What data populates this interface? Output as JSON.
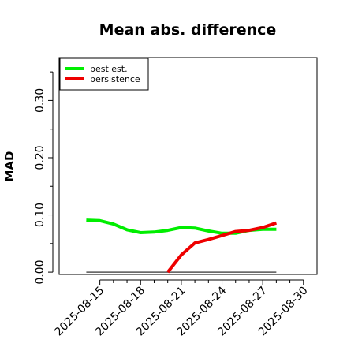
{
  "chart_data": {
    "type": "line",
    "title": "Mean abs. difference",
    "ylabel": "MAD",
    "xlabel": "",
    "ylim": [
      -0.004,
      0.375
    ],
    "xlim": [
      "2025-08-12",
      "2025-08-31"
    ],
    "yticks": [
      0.0,
      0.1,
      0.2,
      0.3
    ],
    "yticklabels": [
      "0.00",
      "0.10",
      "0.20",
      "0.30"
    ],
    "yminorticks": [
      0.05,
      0.15,
      0.25,
      0.35
    ],
    "xticks": [
      "2025-08-15",
      "2025-08-18",
      "2025-08-21",
      "2025-08-24",
      "2025-08-27",
      "2025-08-30"
    ],
    "xminorticks": [
      "2025-08-16",
      "2025-08-17",
      "2025-08-19",
      "2025-08-20",
      "2025-08-22",
      "2025-08-23",
      "2025-08-25",
      "2025-08-26",
      "2025-08-28",
      "2025-08-29"
    ],
    "grid": false,
    "legend_position": "top-left",
    "reference_line": {
      "y": 0.0,
      "x_from": "2025-08-14",
      "x_to": "2025-08-28",
      "color": "#555555"
    },
    "series": [
      {
        "name": "best est.",
        "color": "#00ee00",
        "x": [
          "2025-08-14",
          "2025-08-15",
          "2025-08-16",
          "2025-08-17",
          "2025-08-18",
          "2025-08-19",
          "2025-08-20",
          "2025-08-21",
          "2025-08-22",
          "2025-08-23",
          "2025-08-24",
          "2025-08-25",
          "2025-08-26",
          "2025-08-27",
          "2025-08-28"
        ],
        "values": [
          0.091,
          0.09,
          0.084,
          0.074,
          0.069,
          0.07,
          0.073,
          0.078,
          0.077,
          0.072,
          0.068,
          0.068,
          0.073,
          0.075,
          0.075
        ]
      },
      {
        "name": "persistence",
        "color": "#ee0000",
        "x": [
          "2025-08-20",
          "2025-08-21",
          "2025-08-22",
          "2025-08-23",
          "2025-08-24",
          "2025-08-25",
          "2025-08-26",
          "2025-08-27",
          "2025-08-28"
        ],
        "values": [
          0.0,
          0.03,
          0.051,
          0.057,
          0.064,
          0.071,
          0.073,
          0.078,
          0.086
        ]
      }
    ]
  }
}
